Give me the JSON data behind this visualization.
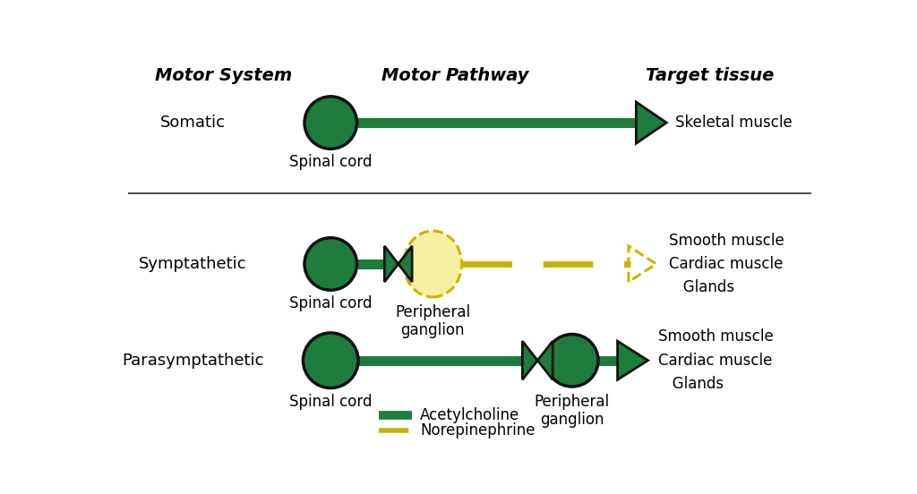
{
  "bg_color": "#ffffff",
  "dark_green": "#1e7d3c",
  "light_yellow": "#f5f0a0",
  "yellow_border": "#c8b400",
  "header_motor_system": "Motor System",
  "header_motor_pathway": "Motor Pathway",
  "header_target_tissue": "Target tissue",
  "row1_label": "Somatic",
  "row1_spinal": "Spinal cord",
  "row1_target": "Skeletal muscle",
  "row2_label": "Symptathetic",
  "row2_spinal": "Spinal cord",
  "row2_ganglion": "Peripheral\nganglion",
  "row2_target": "Smooth muscle\nCardiac muscle\n   Glands",
  "row3_label": "Parasymptathetic",
  "row3_spinal": "Spinal cord",
  "row3_ganglion": "Peripheral\nganglion",
  "row3_target": "Smooth muscle\nCardiac muscle\n   Glands",
  "legend_acetylcholine": "Acetylcholine",
  "legend_norepinephrine": "Norepinephrine"
}
